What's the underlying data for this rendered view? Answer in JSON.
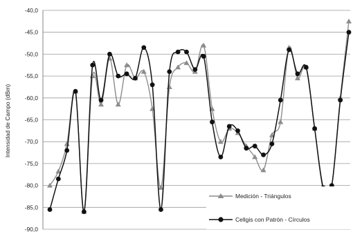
{
  "chart_data": {
    "type": "line",
    "title": "",
    "xlabel": "",
    "ylabel": "Intensidad de Campo (dBm)",
    "ylim": [
      -90,
      -40
    ],
    "yticks": [
      "-40,0",
      "-45,0",
      "-50,0",
      "-55,0",
      "-60,0",
      "-65,0",
      "-70,0",
      "-75,0",
      "-80,0",
      "-85,0",
      "-90,0"
    ],
    "grid": true,
    "legend_position": "bottom-right",
    "series": [
      {
        "name": "Medición - Triángulos",
        "color": "#8c8c8c",
        "marker": "triangle",
        "values": [
          -80.0,
          -76.8,
          -70.5,
          -58.5,
          -86.0,
          -55.0,
          -61.5,
          -51.0,
          -61.5,
          -52.5,
          -55.5,
          -54.0,
          -62.5,
          -80.5,
          -57.5,
          -53.0,
          -52.0,
          -54.0,
          -48.0,
          -62.5,
          -70.0,
          -67.0,
          -68.0,
          -71.0,
          -73.5,
          -76.5,
          -68.5,
          -65.5,
          -48.5,
          -55.5,
          -53.0,
          -67.0,
          -81.0,
          -80.0,
          -60.0,
          -42.5
        ]
      },
      {
        "name": "Cellgis con Patrón - Círculos",
        "color": "#111111",
        "marker": "circle",
        "values": [
          -85.5,
          -78.5,
          -72.0,
          -58.5,
          -86.0,
          -52.5,
          -60.5,
          -50.0,
          -55.0,
          -54.5,
          -55.5,
          -48.5,
          -57.0,
          -85.5,
          -54.0,
          -49.5,
          -49.5,
          -53.5,
          -50.5,
          -65.5,
          -73.5,
          -66.5,
          -67.5,
          -71.5,
          -71.0,
          -73.0,
          -70.5,
          -60.5,
          -49.0,
          -54.5,
          -53.0,
          -67.0,
          -80.5,
          -80.0,
          -60.5,
          -45.0
        ]
      }
    ]
  }
}
